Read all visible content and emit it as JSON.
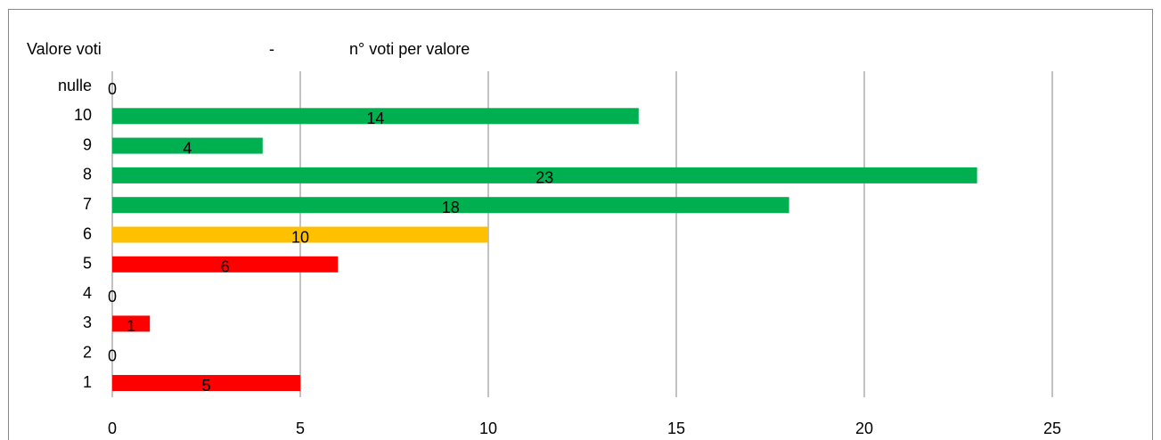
{
  "chart_data": {
    "type": "bar",
    "orientation": "horizontal",
    "title": [
      "Valore voti",
      "-",
      "n° voti per valore"
    ],
    "categories": [
      "nulle",
      "10",
      "9",
      "8",
      "7",
      "6",
      "5",
      "4",
      "3",
      "2",
      "1"
    ],
    "values": [
      0,
      14,
      4,
      23,
      18,
      10,
      6,
      0,
      1,
      0,
      5
    ],
    "colors": [
      "#00b050",
      "#00b050",
      "#00b050",
      "#00b050",
      "#00b050",
      "#ffc000",
      "#ff0000",
      "#ff0000",
      "#ff0000",
      "#ff0000",
      "#ff0000"
    ],
    "xlim": [
      0,
      25
    ],
    "xticks": [
      0,
      5,
      10,
      15,
      20,
      25
    ],
    "grid": true
  }
}
